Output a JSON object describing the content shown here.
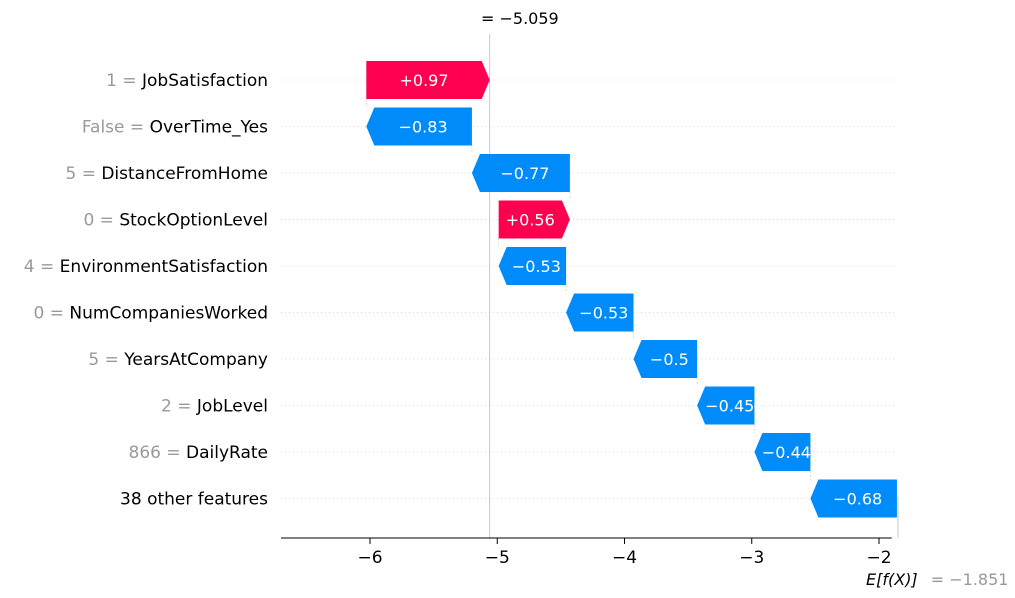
{
  "chart_data": {
    "type": "waterfall",
    "fx_label": "= −5.059",
    "fx_value": -5.059,
    "base_label_prefix": "E[f(X)]",
    "base_label_suffix": "= −1.851",
    "base_value": -1.851,
    "xlim": [
      -6.7,
      -1.9
    ],
    "xticks": [
      {
        "value": -6,
        "label": "−6"
      },
      {
        "value": -5,
        "label": "−5"
      },
      {
        "value": -4,
        "label": "−4"
      },
      {
        "value": -3,
        "label": "−3"
      },
      {
        "value": -2,
        "label": "−2"
      }
    ],
    "features": [
      {
        "value_text": "1",
        "name": "JobSatisfaction",
        "contribution": 0.97,
        "label": "+0.97"
      },
      {
        "value_text": "False",
        "name": "OverTime_Yes",
        "contribution": -0.83,
        "label": "−0.83"
      },
      {
        "value_text": "5",
        "name": "DistanceFromHome",
        "contribution": -0.77,
        "label": "−0.77"
      },
      {
        "value_text": "0",
        "name": "StockOptionLevel",
        "contribution": 0.56,
        "label": "+0.56"
      },
      {
        "value_text": "4",
        "name": "EnvironmentSatisfaction",
        "contribution": -0.53,
        "label": "−0.53"
      },
      {
        "value_text": "0",
        "name": "NumCompaniesWorked",
        "contribution": -0.53,
        "label": "−0.53"
      },
      {
        "value_text": "5",
        "name": "YearsAtCompany",
        "contribution": -0.5,
        "label": "−0.5"
      },
      {
        "value_text": "2",
        "name": "JobLevel",
        "contribution": -0.45,
        "label": "−0.45"
      },
      {
        "value_text": "866",
        "name": "DailyRate",
        "contribution": -0.44,
        "label": "−0.44"
      },
      {
        "value_text": "",
        "name": "38 other features",
        "contribution": -0.68,
        "label": "−0.68"
      }
    ],
    "colors": {
      "positive": "#ff0051",
      "negative": "#008bfb",
      "value_text": "#999999",
      "grid": "#cccccc"
    }
  }
}
